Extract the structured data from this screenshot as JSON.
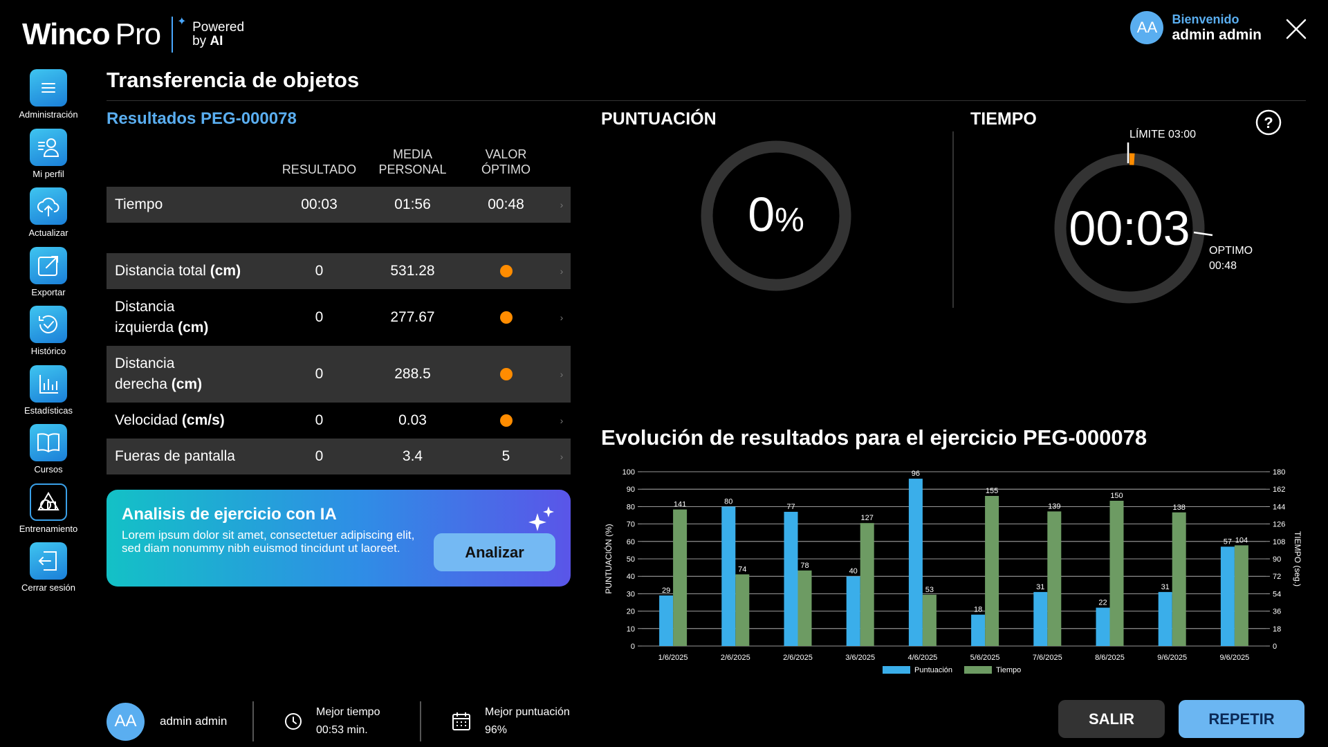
{
  "header": {
    "logo_main": "Winco",
    "logo_pro": "Pro",
    "logo_powered": "Powered",
    "logo_by": "by",
    "logo_ai": "AI",
    "user_initials": "AA",
    "welcome": "Bienvenido",
    "user_name": "admin admin"
  },
  "sidebar": {
    "items": [
      {
        "label": "Administración",
        "icon": "menu-icon"
      },
      {
        "label": "Mi perfil",
        "icon": "profile-icon"
      },
      {
        "label": "Actualizar",
        "icon": "cloud-upload-icon"
      },
      {
        "label": "Exportar",
        "icon": "export-icon"
      },
      {
        "label": "Histórico",
        "icon": "history-icon"
      },
      {
        "label": "Estadísticas",
        "icon": "stats-icon"
      },
      {
        "label": "Cursos",
        "icon": "book-icon"
      },
      {
        "label": "Entrenamiento",
        "icon": "training-icon"
      },
      {
        "label": "Cerrar sesión",
        "icon": "logout-icon"
      }
    ]
  },
  "page": {
    "title": "Transferencia de objetos",
    "results_title": "Resultados PEG-000078"
  },
  "table": {
    "headers": [
      "RESULTADO",
      "MEDIA PERSONAL",
      "VALOR ÓPTIMO"
    ],
    "header_media_1": "MEDIA",
    "header_media_2": "PERSONAL",
    "header_optimo_1": "VALOR",
    "header_optimo_2": "ÓPTIMO",
    "rows": [
      {
        "name": "Tiempo",
        "unit": "",
        "resultado": "00:03",
        "media": "01:56",
        "optimo": "00:48"
      },
      {
        "name": "Distancia total",
        "unit": "(cm)",
        "resultado": "0",
        "media": "531.28",
        "optimo": "dot"
      },
      {
        "name": "Distancia izquierda",
        "name_1": "Distancia",
        "name_2": "izquierda",
        "unit": "(cm)",
        "resultado": "0",
        "media": "277.67",
        "optimo": "dot"
      },
      {
        "name": "Distancia derecha",
        "name_1": "Distancia",
        "name_2": "derecha",
        "unit": "(cm)",
        "resultado": "0",
        "media": "288.5",
        "optimo": "dot"
      },
      {
        "name": "Velocidad",
        "unit": "(cm/s)",
        "resultado": "0",
        "media": "0.03",
        "optimo": "dot"
      },
      {
        "name": "Fueras de pantalla",
        "unit": "",
        "resultado": "0",
        "media": "3.4",
        "optimo": "5"
      }
    ],
    "dot_color": "#ff8c00"
  },
  "ai_card": {
    "title": "Analisis de ejercicio con IA",
    "text": "Lorem ipsum dolor sit amet, consectetuer adipiscing elit, sed diam nonummy nibh euismod tincidunt ut laoreet.",
    "button": "Analizar"
  },
  "score": {
    "title": "PUNTUACIÓN",
    "value": "0",
    "unit": "%"
  },
  "time": {
    "title": "TIEMPO",
    "value": "00:03",
    "limit_label": "LÍMITE 03:00",
    "optimo_label": "OPTIMO",
    "optimo_value": "00:48",
    "limit_color": "#ff8c00"
  },
  "chart_title": "Evolución de resultados para el ejercicio PEG-000078",
  "chart_data": {
    "type": "bar",
    "categories": [
      "1/6/2025",
      "2/6/2025",
      "2/6/2025",
      "3/6/2025",
      "4/6/2025",
      "5/6/2025",
      "7/6/2025",
      "8/6/2025",
      "9/6/2025",
      "9/6/2025"
    ],
    "series": [
      {
        "name": "Puntuación",
        "values": [
          29,
          80,
          77,
          40,
          96,
          18,
          31,
          22,
          31,
          57
        ],
        "color": "#3aaeea",
        "axis": "left"
      },
      {
        "name": "Tiempo",
        "values": [
          141,
          74,
          78,
          127,
          53,
          155,
          139,
          150,
          138,
          104
        ],
        "color": "#6d9b63",
        "axis": "right"
      }
    ],
    "ylabel": "PUNTUACIÓN (%)",
    "ylabel_right": "TIEMPO (seg.)",
    "ylim": [
      0,
      100
    ],
    "ylim_right": [
      0,
      180
    ],
    "yticks": [
      "0",
      "10",
      "20",
      "30",
      "40",
      "50",
      "60",
      "70",
      "80",
      "90",
      "100"
    ],
    "yticks_right": [
      "0",
      "18",
      "36",
      "54",
      "72",
      "90",
      "108",
      "126",
      "144",
      "162",
      "180"
    ],
    "legend_position": "bottom",
    "grid": true
  },
  "footer": {
    "user_initials": "AA",
    "user_name": "admin admin",
    "best_time_label": "Mejor tiempo",
    "best_time_value": "00:53 min.",
    "best_score_label": "Mejor puntuación",
    "best_score_value": "96%",
    "exit_button": "SALIR",
    "repeat_button": "REPETIR"
  }
}
